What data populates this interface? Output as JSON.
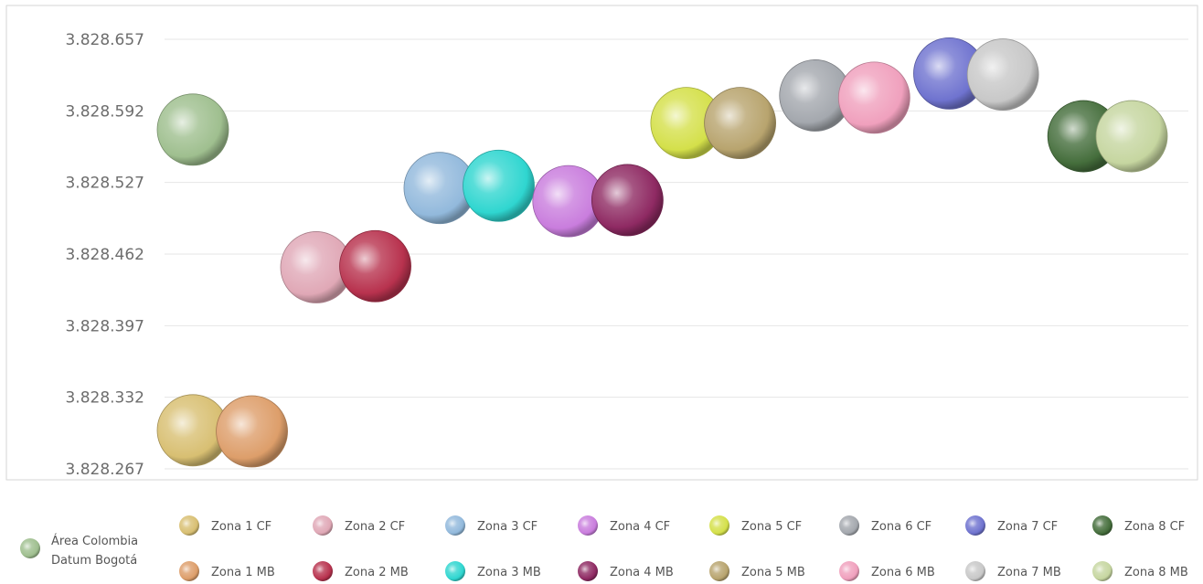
{
  "chart_data": {
    "type": "bubble",
    "title": "",
    "xlabel": "",
    "ylabel": "",
    "ylim": [
      3828267,
      3828657
    ],
    "yticks": [
      "3.828.657",
      "3.828.592",
      "3.828.527",
      "3.828.462",
      "3.828.397",
      "3.828.332",
      "3.828.267"
    ],
    "ytick_values": [
      3828657,
      3828592,
      3828527,
      3828462,
      3828397,
      3828332,
      3828267
    ],
    "grid": true,
    "legend_position": "bottom",
    "series": [
      {
        "name": "Área Colombia Datum Bogotá",
        "x": 1,
        "y": 3828575,
        "color": "#9fbf8f"
      },
      {
        "name": "Zona 1 CF",
        "x": 1,
        "y": 3828302,
        "color": "#d8bf72"
      },
      {
        "name": "Zona 1 MB",
        "x": 1.55,
        "y": 3828301,
        "color": "#dd9e6a"
      },
      {
        "name": "Zona 2 CF",
        "x": 2.15,
        "y": 3828450,
        "color": "#e0a8b6"
      },
      {
        "name": "Zona 2 MB",
        "x": 2.7,
        "y": 3828451,
        "color": "#b8324e"
      },
      {
        "name": "Zona 3 CF",
        "x": 3.3,
        "y": 3828522,
        "color": "#92b9dc"
      },
      {
        "name": "Zona 3 MB",
        "x": 3.85,
        "y": 3828524,
        "color": "#2fd6d0"
      },
      {
        "name": "Zona 4 CF",
        "x": 4.5,
        "y": 3828510,
        "color": "#c97ddd"
      },
      {
        "name": "Zona 4 MB",
        "x": 5.05,
        "y": 3828511,
        "color": "#8f2a63"
      },
      {
        "name": "Zona 5 CF",
        "x": 5.6,
        "y": 3828581,
        "color": "#d4e04a"
      },
      {
        "name": "Zona 5 MB",
        "x": 6.1,
        "y": 3828581,
        "color": "#b8a46e"
      },
      {
        "name": "Zona 6 CF",
        "x": 6.8,
        "y": 3828606,
        "color": "#a4a8ae"
      },
      {
        "name": "Zona 6 MB",
        "x": 7.35,
        "y": 3828604,
        "color": "#f0a0bd"
      },
      {
        "name": "Zona 7 CF",
        "x": 8.05,
        "y": 3828626,
        "color": "#6f73cf"
      },
      {
        "name": "Zona 7 MB",
        "x": 8.55,
        "y": 3828625,
        "color": "#c8c8c8"
      },
      {
        "name": "Zona 8 CF",
        "x": 9.3,
        "y": 3828569,
        "color": "#456e3c"
      },
      {
        "name": "Zona 8 MB",
        "x": 9.75,
        "y": 3828569,
        "color": "#c6d6a0"
      }
    ]
  },
  "legend": {
    "first_label_line1": "Área Colombia",
    "first_label_line2": "Datum Bogotá"
  }
}
